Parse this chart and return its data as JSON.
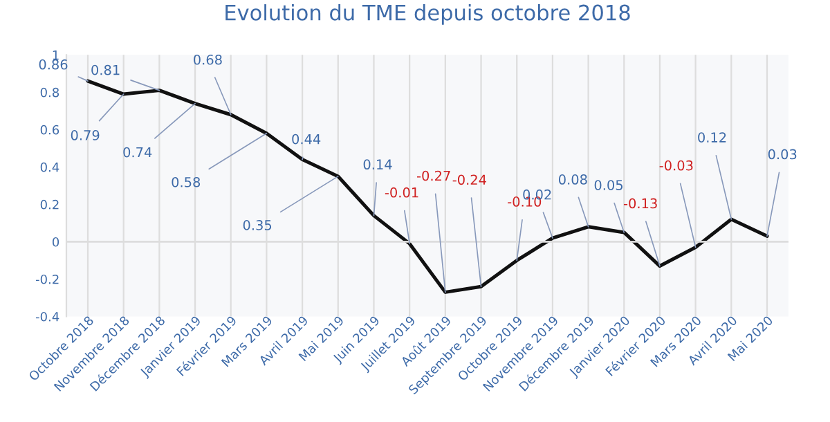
{
  "chart_data": {
    "type": "line",
    "title": "Evolution du TME depuis octobre 2018",
    "categories": [
      "Octobre 2018",
      "Novembre 2018",
      "Décembre 2018",
      "Janvier 2019",
      "Février 2019",
      "Mars 2019",
      "Avril 2019",
      "Mai 2019",
      "Juin 2019",
      "Juillet 2019",
      "Août 2019",
      "Septembre 2019",
      "Octobre 2019",
      "Novembre 2019",
      "Décembre 2019",
      "Janvier 2020",
      "Février 2020",
      "Mars 2020",
      "Avril 2020",
      "Mai 2020"
    ],
    "series": [
      {
        "color": "#111111",
        "values": [
          0.86,
          0.79,
          0.81,
          0.74,
          0.68,
          0.58,
          0.44,
          0.35,
          0.14,
          -0.01,
          -0.27,
          -0.24,
          -0.1,
          0.02,
          0.08,
          0.05,
          -0.13,
          -0.03,
          0.12,
          0.03
        ],
        "value_labels": [
          "0.86",
          "0.79",
          "0.81",
          "0.74",
          "0.68",
          "0.58",
          "0.44",
          "0.35",
          "0.14",
          "-0.01",
          "-0.27",
          "-0.24",
          "-0.10",
          "0.02",
          "0.08",
          "0.05",
          "-0.13",
          "-0.03",
          "0.12",
          "0.03"
        ]
      }
    ],
    "ylim": [
      -0.4,
      1
    ],
    "yticks": [
      -0.4,
      -0.2,
      0,
      0.2,
      0.4,
      0.6,
      0.8,
      1
    ],
    "grid": "x",
    "legend": false,
    "marker": "none",
    "line_style": "solid"
  }
}
